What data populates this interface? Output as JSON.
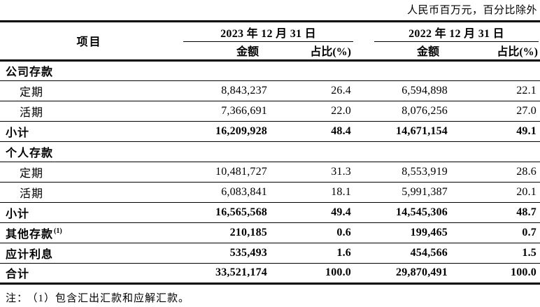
{
  "meta": {
    "unit_note": "人民币百万元，百分比除外",
    "note_label": "注：",
    "footnote": "（1）包含汇出汇款和应解汇款。"
  },
  "table": {
    "item_header": "项目",
    "col_groups": [
      {
        "label": "2023 年 12 月 31 日",
        "sub": [
          "金额",
          "占比(%)"
        ]
      },
      {
        "label": "2022 年 12 月 31 日",
        "sub": [
          "金额",
          "占比(%)"
        ]
      }
    ],
    "rows": [
      {
        "label": "公司存款",
        "type": "section",
        "values": [
          "",
          "",
          "",
          ""
        ]
      },
      {
        "label": "定期",
        "type": "detail",
        "values": [
          "8,843,237",
          "26.4",
          "6,594,898",
          "22.1"
        ]
      },
      {
        "label": "活期",
        "type": "detail",
        "values": [
          "7,366,691",
          "22.0",
          "8,076,256",
          "27.0"
        ]
      },
      {
        "label": "小计",
        "type": "subtotal",
        "values": [
          "16,209,928",
          "48.4",
          "14,671,154",
          "49.1"
        ]
      },
      {
        "label": "个人存款",
        "type": "section",
        "values": [
          "",
          "",
          "",
          ""
        ]
      },
      {
        "label": "定期",
        "type": "detail",
        "values": [
          "10,481,727",
          "31.3",
          "8,553,919",
          "28.6"
        ]
      },
      {
        "label": "活期",
        "type": "detail",
        "values": [
          "6,083,841",
          "18.1",
          "5,991,387",
          "20.1"
        ]
      },
      {
        "label": "小计",
        "type": "subtotal",
        "values": [
          "16,565,568",
          "49.4",
          "14,545,306",
          "48.7"
        ]
      },
      {
        "label": "其他存款",
        "sup": "(1)",
        "type": "subtotal",
        "values": [
          "210,185",
          "0.6",
          "199,465",
          "0.7"
        ]
      },
      {
        "label": "应计利息",
        "type": "subtotal",
        "values": [
          "535,493",
          "1.6",
          "454,566",
          "1.5"
        ]
      },
      {
        "label": "合计",
        "type": "total",
        "values": [
          "33,521,174",
          "100.0",
          "29,870,491",
          "100.0"
        ]
      }
    ]
  }
}
